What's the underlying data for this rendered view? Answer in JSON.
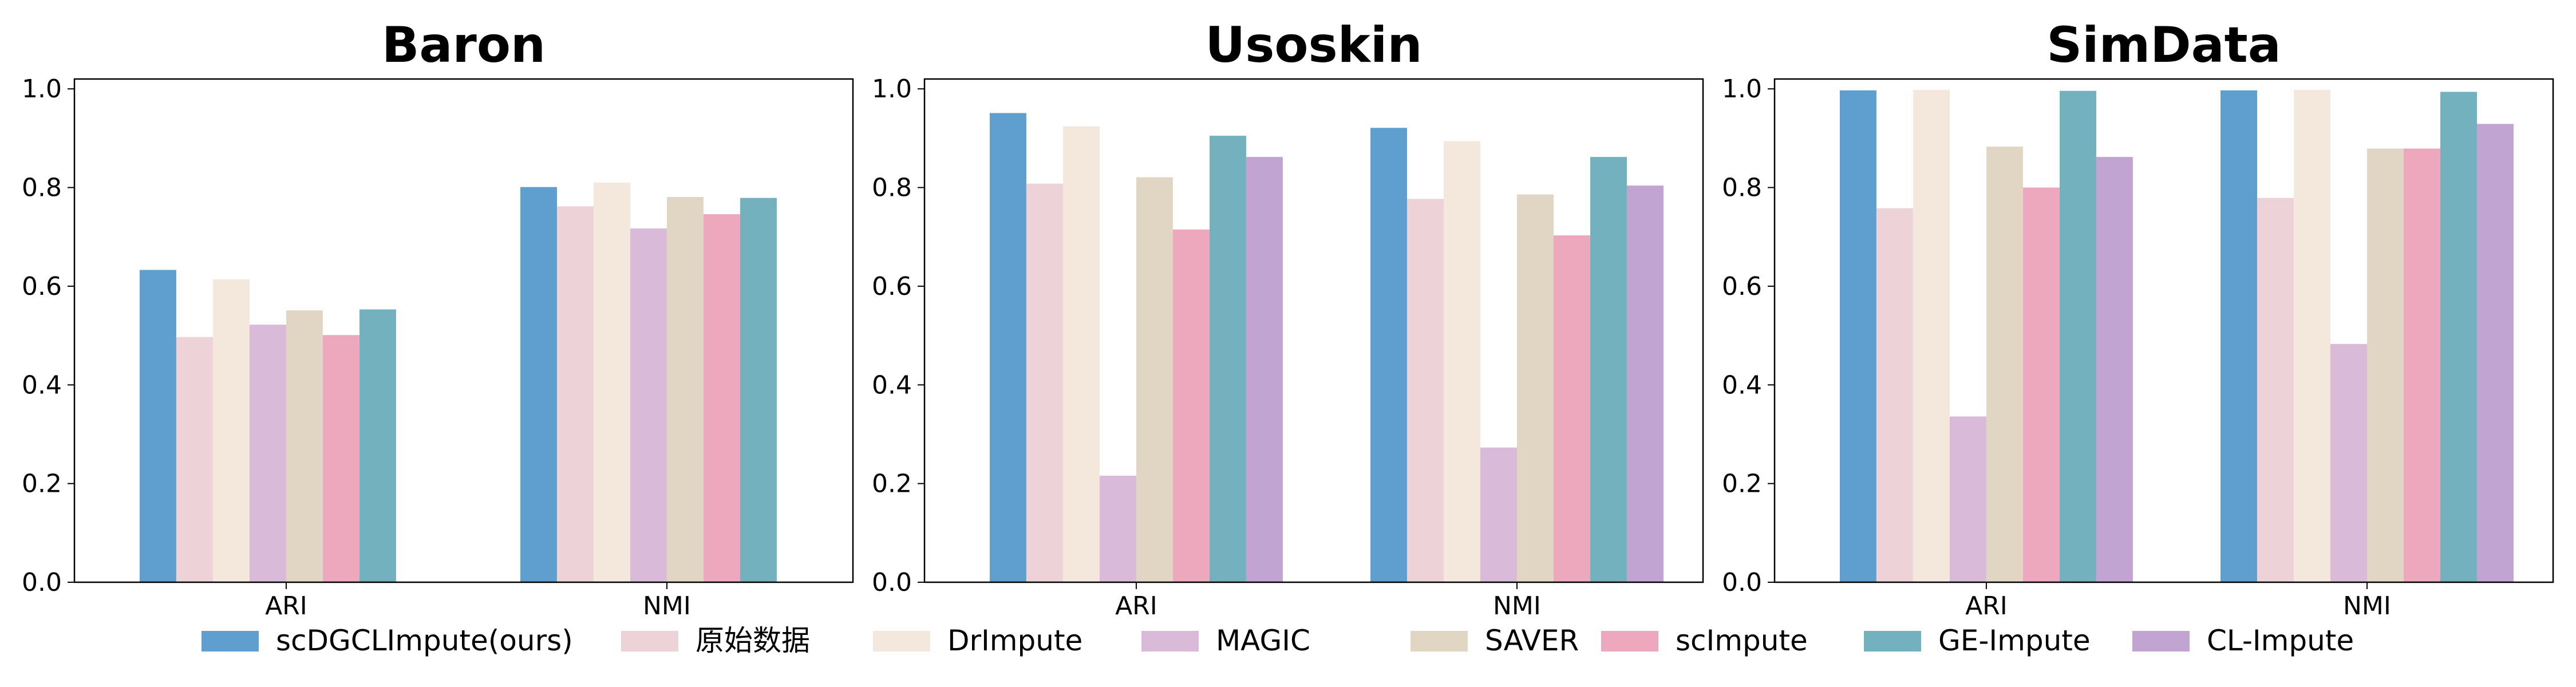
{
  "legend": [
    {
      "name": "scDGCLImpute(ours)",
      "color": "#5f9fcf"
    },
    {
      "name": "原始数据",
      "color": "#edd2d8"
    },
    {
      "name": "DrImpute",
      "color": "#f4e7dc"
    },
    {
      "name": "MAGIC",
      "color": "#d9bad9"
    },
    {
      "name": "SAVER",
      "color": "#e1d6c4"
    },
    {
      "name": "scImpute",
      "color": "#eea8bd"
    },
    {
      "name": "GE-Impute",
      "color": "#74b1bf"
    },
    {
      "name": "CL-Impute",
      "color": "#c2a4d2"
    }
  ],
  "chart_data": [
    {
      "type": "bar",
      "title": "Baron",
      "categories": [
        "ARI",
        "NMI"
      ],
      "ylim": [
        0,
        1.0
      ],
      "yticks": [
        "0.0",
        "0.2",
        "0.4",
        "0.6",
        "0.8",
        "1.0"
      ],
      "grid": false,
      "series": [
        {
          "name": "scDGCLImpute(ours)",
          "values": [
            0.633,
            0.801
          ]
        },
        {
          "name": "原始数据",
          "values": [
            0.497,
            0.762
          ]
        },
        {
          "name": "DrImpute",
          "values": [
            0.614,
            0.81
          ]
        },
        {
          "name": "MAGIC",
          "values": [
            0.522,
            0.717
          ]
        },
        {
          "name": "SAVER",
          "values": [
            0.551,
            0.781
          ]
        },
        {
          "name": "scImpute",
          "values": [
            0.501,
            0.746
          ]
        },
        {
          "name": "GE-Impute",
          "values": [
            0.553,
            0.779
          ]
        },
        {
          "name": "CL-Impute",
          "values": [
            null,
            null
          ]
        }
      ]
    },
    {
      "type": "bar",
      "title": "Usoskin",
      "categories": [
        "ARI",
        "NMI"
      ],
      "ylim": [
        0,
        1.0
      ],
      "yticks": [
        "0.0",
        "0.2",
        "0.4",
        "0.6",
        "0.8",
        "1.0"
      ],
      "grid": false,
      "series": [
        {
          "name": "scDGCLImpute(ours)",
          "values": [
            0.951,
            0.921
          ]
        },
        {
          "name": "原始数据",
          "values": [
            0.808,
            0.777
          ]
        },
        {
          "name": "DrImpute",
          "values": [
            0.924,
            0.894
          ]
        },
        {
          "name": "MAGIC",
          "values": [
            0.216,
            0.273
          ]
        },
        {
          "name": "SAVER",
          "values": [
            0.821,
            0.786
          ]
        },
        {
          "name": "scImpute",
          "values": [
            0.715,
            0.703
          ]
        },
        {
          "name": "GE-Impute",
          "values": [
            0.905,
            0.862
          ]
        },
        {
          "name": "CL-Impute",
          "values": [
            0.862,
            0.804
          ]
        }
      ]
    },
    {
      "type": "bar",
      "title": "SimData",
      "categories": [
        "ARI",
        "NMI"
      ],
      "ylim": [
        0,
        1.0
      ],
      "yticks": [
        "0.0",
        "0.2",
        "0.4",
        "0.6",
        "0.8",
        "1.0"
      ],
      "grid": false,
      "series": [
        {
          "name": "scDGCLImpute(ours)",
          "values": [
            0.997,
            0.997
          ]
        },
        {
          "name": "原始数据",
          "values": [
            0.758,
            0.779
          ]
        },
        {
          "name": "DrImpute",
          "values": [
            0.998,
            0.998
          ]
        },
        {
          "name": "MAGIC",
          "values": [
            0.336,
            0.483
          ]
        },
        {
          "name": "SAVER",
          "values": [
            0.883,
            0.879
          ]
        },
        {
          "name": "scImpute",
          "values": [
            0.8,
            0.879
          ]
        },
        {
          "name": "GE-Impute",
          "values": [
            0.996,
            0.994
          ]
        },
        {
          "name": "CL-Impute",
          "values": [
            0.862,
            0.929
          ]
        }
      ]
    }
  ]
}
